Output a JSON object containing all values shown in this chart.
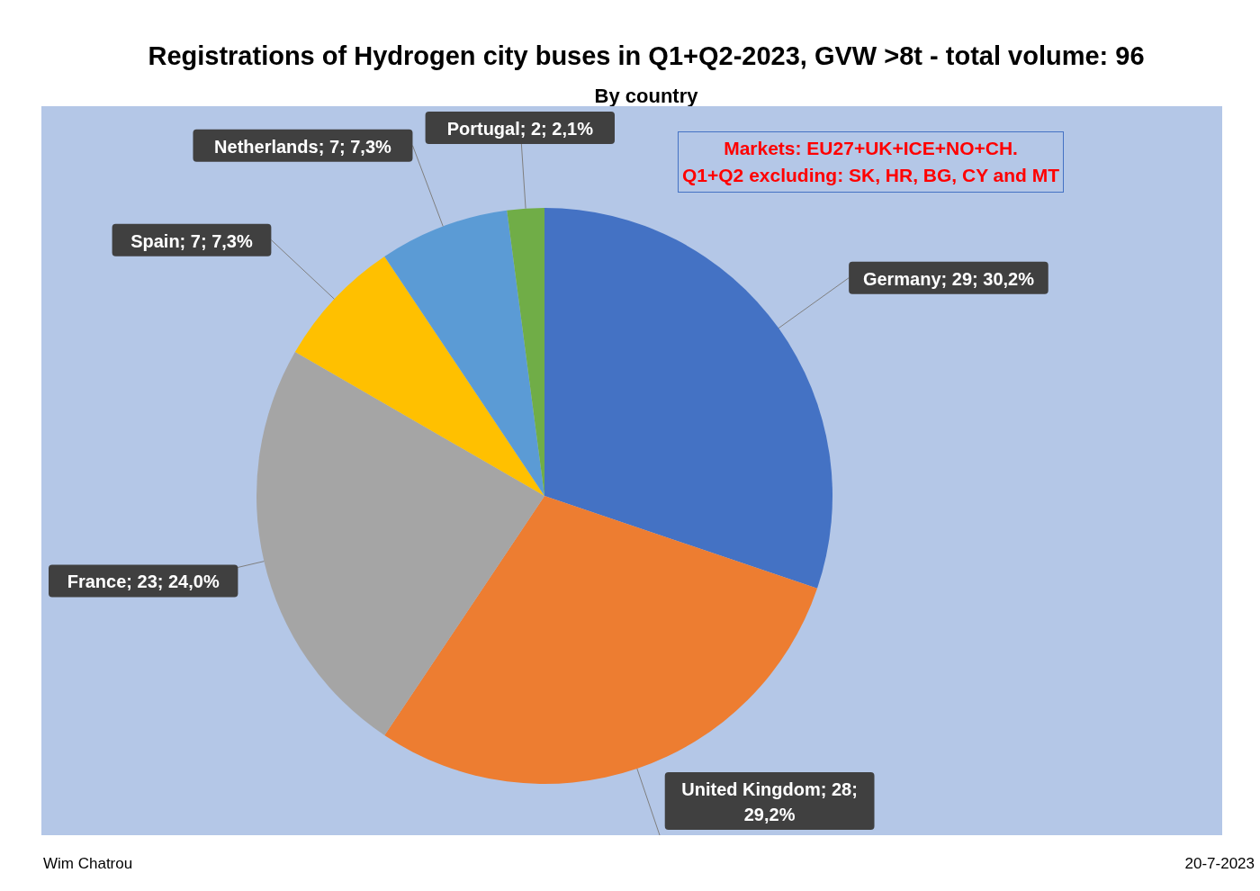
{
  "chart_data": {
    "type": "pie",
    "title": "Registrations of Hydrogen city buses in Q1+Q2-2023, GVW >8t - total volume: 96",
    "subtitle": "By country",
    "categories": [
      "Germany",
      "United Kingdom",
      "France",
      "Spain",
      "Netherlands",
      "Portugal"
    ],
    "values": [
      29,
      28,
      23,
      7,
      7,
      2
    ],
    "value_labels": [
      "29; 30,2%",
      "28; 29,2%",
      "23; 24,0%",
      "7; 7,3%",
      "7; 7,3%",
      "2; 2,1%"
    ],
    "colors": [
      "#4472c4",
      "#ed7d31",
      "#a5a5a5",
      "#ffc000",
      "#5b9bd5",
      "#70ad47"
    ],
    "legend": false,
    "annotations": [
      "Markets: EU27+UK+ICE+NO+CH.",
      "Q1+Q2 excluding: SK, HR, BG, CY and MT",
      "Wim Chatrou",
      "20-7-2023"
    ]
  }
}
